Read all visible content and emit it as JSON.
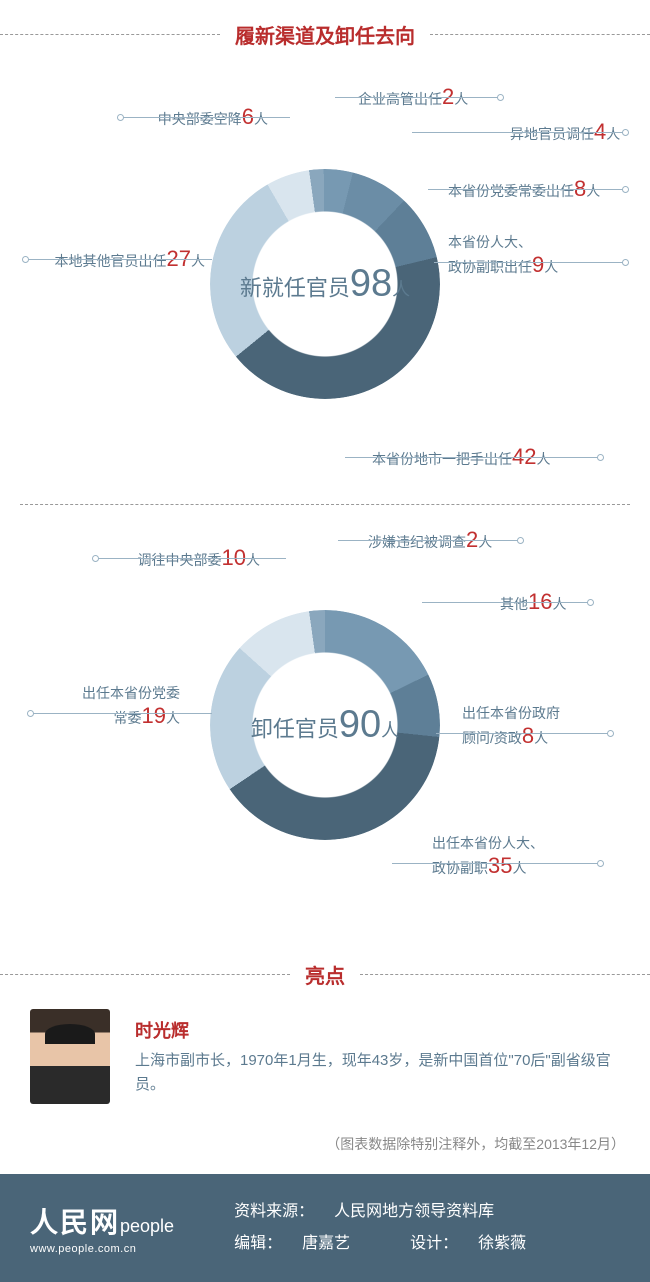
{
  "title": "履新渠道及卸任去向",
  "chart1": {
    "center_label": "新就任官员",
    "center_value": 98,
    "center_unit": "人",
    "ring_thickness": 42,
    "slices": [
      {
        "label": "企业高管出任",
        "value": 2,
        "color": "#8aa7bd"
      },
      {
        "label": "异地官员调任",
        "value": 4,
        "color": "#7799b2"
      },
      {
        "label": "本省份党委常委出任",
        "value": 8,
        "color": "#6b8da6"
      },
      {
        "label": "本省份人大、\n政协副职出任",
        "value": 9,
        "color": "#5e7f97"
      },
      {
        "label": "本省份地市一把手出任",
        "value": 42,
        "color": "#4a6578"
      },
      {
        "label": "本地其他官员出任",
        "value": 27,
        "color": "#bcd1e0"
      },
      {
        "label": "中央部委空降",
        "value": 6,
        "color": "#d9e5ee"
      }
    ],
    "unit": "人"
  },
  "chart2": {
    "center_label": "卸任官员",
    "center_value": 90,
    "center_unit": "人",
    "ring_thickness": 42,
    "slices": [
      {
        "label": "涉嫌违纪被调查",
        "value": 2,
        "color": "#8aa7bd"
      },
      {
        "label": "其他",
        "value": 16,
        "color": "#7799b2"
      },
      {
        "label": "出任本省份政府\n顾问/资政",
        "value": 8,
        "color": "#5e7f97"
      },
      {
        "label": "出任本省份人大、\n政协副职",
        "value": 35,
        "color": "#4a6578"
      },
      {
        "label": "出任本省份党委\n常委",
        "value": 19,
        "color": "#bcd1e0"
      },
      {
        "label": "调往中央部委",
        "value": 10,
        "color": "#d9e5ee"
      }
    ],
    "unit": "人"
  },
  "highlight": {
    "title": "亮点",
    "name": "时光辉",
    "desc": "上海市副市长，1970年1月生，现年43岁，是新中国首位\"70后\"副省级官员。"
  },
  "note": "（图表数据除特别注释外，均截至2013年12月）",
  "footer": {
    "logo_cn": "人民网",
    "logo_en": "people",
    "url": "www.people.com.cn",
    "source_label": "资料来源：",
    "source": "人民网地方领导资料库",
    "editor_label": "编辑：",
    "editor": "唐嘉艺",
    "design_label": "设计：",
    "design": "徐紫薇"
  },
  "colors": {
    "title": "#b92d2d",
    "text": "#5c7a8f",
    "num": "#c23030",
    "footer_bg": "#4a6578"
  }
}
